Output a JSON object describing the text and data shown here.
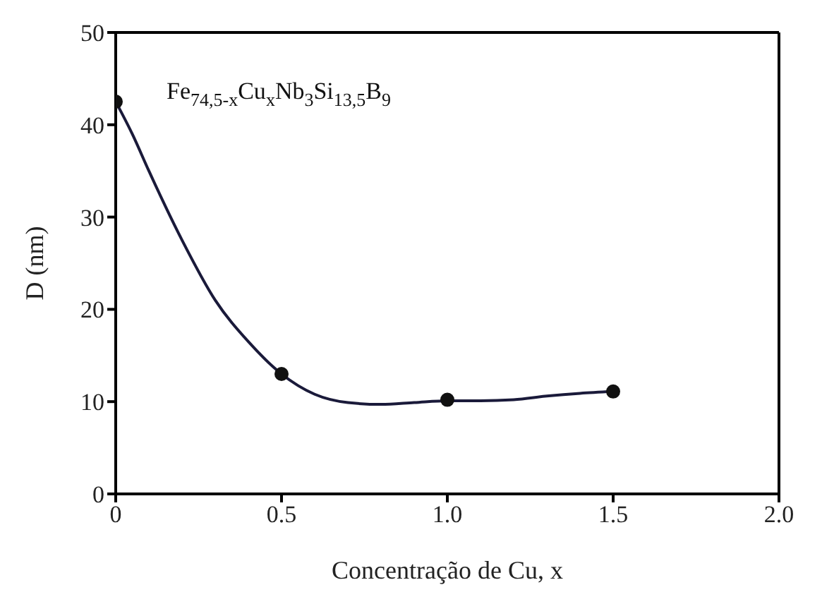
{
  "chart_data": {
    "type": "scatter",
    "xlabel": "Concentração de Cu, x",
    "ylabel": "D (nm)",
    "annotations": [
      "Fe$_{74,5-x}$Cu$_{x}$Nb$_{3}$Si$_{13,5}$B$_{9}$"
    ],
    "x": [
      0,
      0.5,
      1.0,
      1.5
    ],
    "series": [
      {
        "color": "#111111",
        "values": [
          42.5,
          13,
          10.2,
          11.1
        ]
      },
      {
        "type": "line",
        "color": "#1a1a3a",
        "marker": "none",
        "x": [
          0,
          0.05,
          0.1,
          0.2,
          0.3,
          0.4,
          0.5,
          0.6,
          0.7,
          0.8,
          0.9,
          1.0,
          1.1,
          1.2,
          1.3,
          1.4,
          1.5
        ],
        "values": [
          42.5,
          39,
          35,
          27.5,
          21,
          16.5,
          13,
          10.8,
          9.9,
          9.7,
          9.9,
          10.1,
          10.1,
          10.2,
          10.6,
          10.9,
          11.1
        ]
      }
    ],
    "xlim": [
      0,
      2
    ],
    "xticks": [
      0,
      {
        "value": 0.5,
        "label": "0.5"
      },
      {
        "value": 1,
        "label": "1.0"
      },
      {
        "value": 1.5,
        "label": "1.5"
      },
      {
        "value": 2,
        "label": "2.0"
      }
    ],
    "ylim": [
      0,
      50
    ],
    "yticks": [
      0,
      10,
      20,
      30,
      40,
      50
    ],
    "grid": false,
    "legend": false,
    "marker": "circle"
  }
}
